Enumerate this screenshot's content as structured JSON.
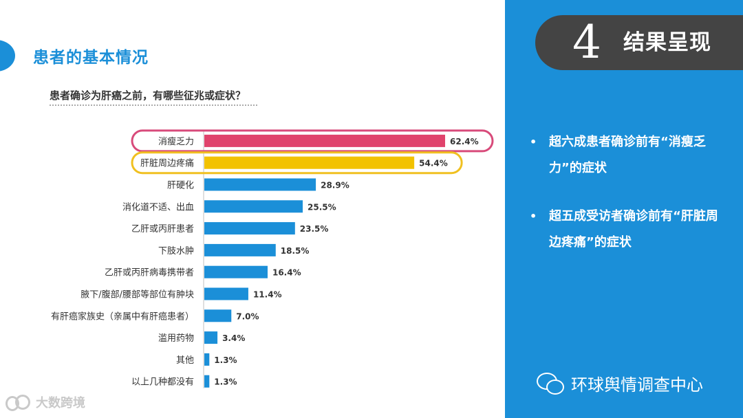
{
  "page": {
    "title": "患者的基本情况",
    "question": "患者确诊为肝癌之前，有哪些征兆或症状？"
  },
  "section": {
    "number": "4",
    "title": "结果呈现"
  },
  "bullets": [
    {
      "dot": "•",
      "text": "超六成患者确诊前有“消瘦乏力”的症状"
    },
    {
      "dot": "•",
      "text": "超五成受访者确诊前有“肝脏周边疼痛”的症状"
    }
  ],
  "footer": {
    "brand": "环球舆情调查中心",
    "watermark": "大数跨境"
  },
  "colors": {
    "primary": "#1b8fd8",
    "highlight_1": "#e0436c",
    "highlight_2": "#f2c200",
    "outline_1": "#d84a7a",
    "outline_2": "#f0c020",
    "badge": "#444444"
  },
  "chart_data": {
    "type": "bar",
    "orientation": "horizontal",
    "categories": [
      "消瘦乏力",
      "肝脏周边疼痛",
      "肝硬化",
      "消化道不适、出血",
      "乙肝或丙肝患者",
      "下肢水肿",
      "乙肝或丙肝病毒携带者",
      "腋下/腹部/腰部等部位有肿块",
      "有肝癌家族史（亲属中有肝癌患者）",
      "滥用药物",
      "其他",
      "以上几种都没有"
    ],
    "values": [
      62.4,
      54.4,
      28.9,
      25.5,
      23.5,
      18.5,
      16.4,
      11.4,
      7.0,
      3.4,
      1.3,
      1.3
    ],
    "labels": [
      "62.4%",
      "54.4%",
      "28.9%",
      "25.5%",
      "23.5%",
      "18.5%",
      "16.4%",
      "11.4%",
      "7.0%",
      "3.4%",
      "1.3%",
      "1.3%"
    ],
    "highlighted": [
      0,
      1
    ],
    "unit": "%",
    "xlim": [
      0,
      62.4
    ],
    "grid": false
  }
}
